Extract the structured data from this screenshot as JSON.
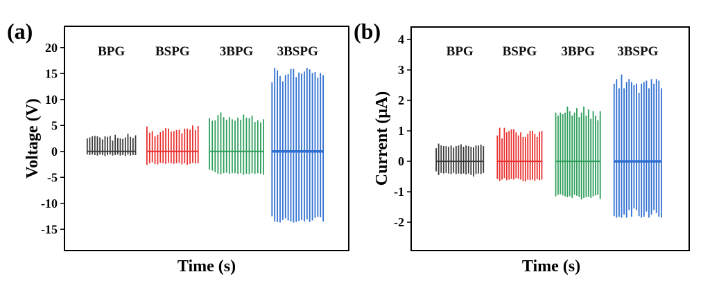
{
  "chart_data": [
    {
      "type": "line",
      "panel_label": "(a)",
      "title": "",
      "xlabel": "Time (s)",
      "ylabel": "Voltage (V)",
      "ylim": [
        -19.1,
        24.1
      ],
      "xlim": [
        0,
        100
      ],
      "yticks": [
        20,
        15,
        10,
        5,
        0,
        -5,
        -10,
        -15
      ],
      "ytick_labels": [
        "20",
        "15",
        "10",
        "5",
        "0",
        "-5",
        "-10",
        "-15"
      ],
      "grid": false,
      "series": [
        {
          "name": "BPG",
          "color": "#3a3a3a",
          "x_range": [
            8,
            25
          ],
          "peaks": [
            2.5,
            2.7,
            2.9,
            3.0,
            2.9,
            2.7,
            2.3,
            2.9,
            2.8,
            3.0,
            2.1,
            3.2,
            2.6,
            2.5,
            2.4,
            2.7,
            3.4,
            2.8,
            2.6,
            3.1
          ],
          "troughs": [
            -0.6,
            -0.7,
            -0.6,
            -0.7,
            -0.8,
            -0.6,
            -0.7,
            -0.9,
            -0.7,
            -0.6,
            -0.8,
            -0.7,
            -0.6,
            -0.8,
            -0.7,
            -0.9,
            -0.6,
            -0.8,
            -0.7,
            -0.7
          ]
        },
        {
          "name": "BSPG",
          "color": "#e8312f",
          "x_range": [
            29,
            47
          ],
          "peaks": [
            4.8,
            3.6,
            3.9,
            2.9,
            3.2,
            3.7,
            4.0,
            4.5,
            4.4,
            3.8,
            3.9,
            4.1,
            4.2,
            3.5,
            4.4,
            4.4,
            4.2,
            5.0,
            4.1,
            4.9
          ],
          "troughs": [
            -2.6,
            -2.3,
            -2.1,
            -2.4,
            -2.5,
            -2.2,
            -2.3,
            -2.4,
            -2.2,
            -2.3,
            -2.4,
            -2.3,
            -2.2,
            -2.5,
            -2.3,
            -2.6,
            -2.4,
            -2.2,
            -2.3,
            -2.3
          ]
        },
        {
          "name": "3BPG",
          "color": "#2e9e5b",
          "x_range": [
            51,
            70
          ],
          "peaks": [
            6.4,
            5.9,
            6.0,
            7.0,
            7.5,
            6.6,
            6.1,
            6.6,
            6.2,
            5.9,
            6.5,
            6.1,
            7.1,
            6.5,
            6.4,
            6.9,
            5.7,
            6.0,
            5.6,
            6.2
          ],
          "troughs": [
            -3.5,
            -3.7,
            -4.0,
            -4.3,
            -4.4,
            -4.2,
            -4.1,
            -4.3,
            -4.2,
            -4.2,
            -4.3,
            -4.2,
            -4.5,
            -4.3,
            -4.4,
            -4.2,
            -4.3,
            -4.2,
            -4.3,
            -4.5
          ]
        },
        {
          "name": "3BSPG",
          "color": "#2f6fd1",
          "x_range": [
            73,
            91
          ],
          "peaks": [
            13.3,
            16.1,
            15.6,
            14.5,
            13.5,
            14.7,
            14.9,
            15.9,
            15.9,
            14.3,
            15.2,
            15.0,
            15.4,
            16.1,
            15.8,
            15.1,
            15.3,
            14.2,
            15.1,
            14.7
          ],
          "troughs": [
            -12.5,
            -13.5,
            -13.6,
            -13.7,
            -13.2,
            -12.9,
            -13.3,
            -13.5,
            -13.7,
            -13.6,
            -13.4,
            -13.2,
            -13.5,
            -13.1,
            -13.6,
            -13.3,
            -12.8,
            -12.6,
            -12.7,
            -13.5
          ]
        }
      ]
    },
    {
      "type": "line",
      "panel_label": "(b)",
      "title": "",
      "xlabel": "Time (s)",
      "ylabel": "Current (μA)",
      "ylim": [
        -2.93,
        4.41
      ],
      "xlim": [
        0,
        100
      ],
      "yticks": [
        4,
        3,
        2,
        1,
        0,
        -1,
        -2
      ],
      "ytick_labels": [
        "4",
        "3",
        "2",
        "1",
        "0",
        "-1",
        "-2"
      ],
      "grid": false,
      "series": [
        {
          "name": "BPG",
          "color": "#3a3a3a",
          "x_range": [
            9,
            26
          ],
          "peaks": [
            0.43,
            0.58,
            0.52,
            0.5,
            0.5,
            0.48,
            0.52,
            0.45,
            0.5,
            0.52,
            0.56,
            0.48,
            0.52,
            0.5,
            0.48,
            0.46,
            0.52,
            0.52,
            0.55,
            0.5
          ],
          "troughs": [
            -0.33,
            -0.45,
            -0.38,
            -0.4,
            -0.38,
            -0.4,
            -0.42,
            -0.38,
            -0.42,
            -0.4,
            -0.42,
            -0.4,
            -0.43,
            -0.4,
            -0.45,
            -0.5,
            -0.42,
            -0.4,
            -0.42,
            -0.38
          ]
        },
        {
          "name": "BSPG",
          "color": "#e8312f",
          "x_range": [
            31,
            47
          ],
          "peaks": [
            0.85,
            1.1,
            0.75,
            1.1,
            0.95,
            1.0,
            1.05,
            1.05,
            0.95,
            0.85,
            0.95,
            0.8,
            0.8,
            0.9,
            1.0,
            1.0,
            0.9,
            0.8,
            0.97,
            1.0
          ],
          "troughs": [
            -0.58,
            -0.65,
            -0.6,
            -0.55,
            -0.62,
            -0.6,
            -0.58,
            -0.6,
            -0.55,
            -0.57,
            -0.6,
            -0.65,
            -0.66,
            -0.6,
            -0.62,
            -0.6,
            -0.64,
            -0.58,
            -0.62,
            -0.6
          ]
        },
        {
          "name": "3BPG",
          "color": "#2e9e5b",
          "x_range": [
            52,
            68
          ],
          "peaks": [
            1.6,
            1.5,
            1.6,
            1.55,
            1.6,
            1.8,
            1.65,
            1.5,
            1.6,
            1.75,
            1.45,
            1.6,
            1.8,
            1.5,
            1.7,
            1.4,
            1.65,
            1.5,
            1.35,
            1.65
          ],
          "troughs": [
            -1.15,
            -1.1,
            -1.08,
            -1.12,
            -1.15,
            -1.18,
            -1.14,
            -1.2,
            -1.1,
            -1.13,
            -1.17,
            -1.25,
            -1.2,
            -1.18,
            -1.16,
            -1.2,
            -1.15,
            -1.12,
            -1.1,
            -1.24
          ]
        },
        {
          "name": "3BSPG",
          "color": "#2f6fd1",
          "x_range": [
            73,
            90
          ],
          "peaks": [
            2.55,
            2.7,
            2.4,
            2.85,
            2.4,
            2.6,
            2.7,
            2.6,
            2.5,
            2.55,
            2.25,
            2.55,
            2.6,
            2.65,
            2.4,
            2.7,
            2.55,
            2.7,
            2.65,
            2.4
          ],
          "troughs": [
            -1.8,
            -1.85,
            -1.82,
            -1.85,
            -1.75,
            -1.85,
            -1.6,
            -1.82,
            -1.55,
            -1.6,
            -1.8,
            -1.85,
            -1.82,
            -1.65,
            -1.85,
            -1.75,
            -1.6,
            -1.7,
            -1.82,
            -1.85
          ]
        }
      ]
    }
  ]
}
